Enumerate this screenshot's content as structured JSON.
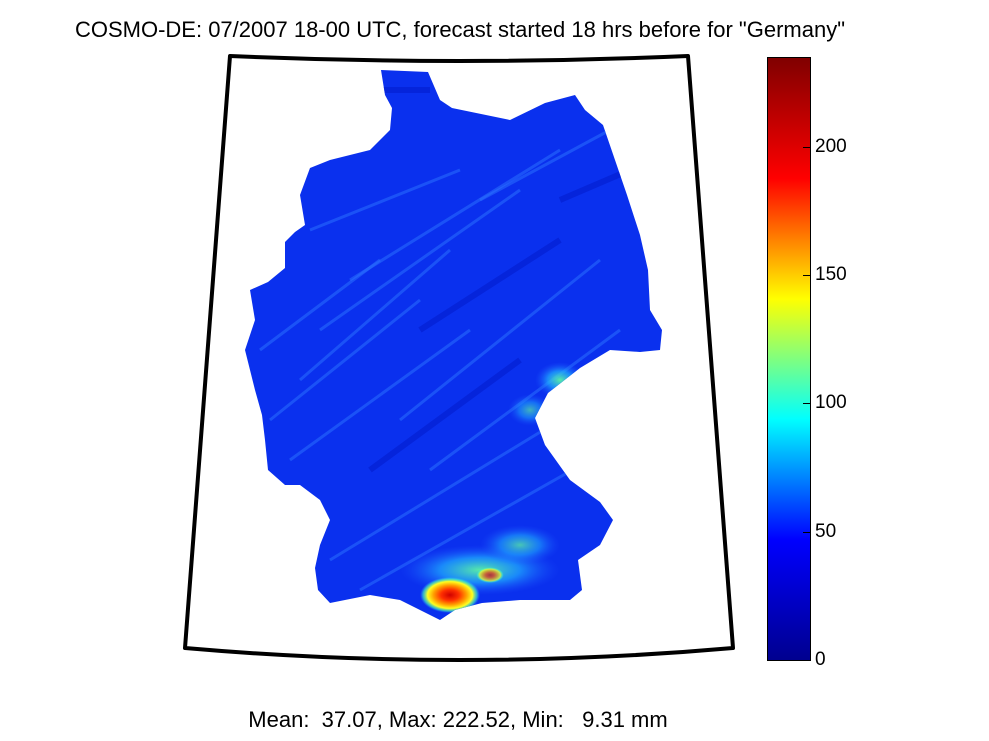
{
  "title": "COSMO-DE: 07/2007 18-00 UTC, forecast started 18 hrs before for \"Germany\"",
  "stats": "Mean:  37.07, Max: 222.52, Min:   9.31 mm",
  "colorbar": {
    "min": 0,
    "max": 235,
    "colormap": "jet",
    "ticks": [
      {
        "value": 0,
        "label": "0"
      },
      {
        "value": 50,
        "label": "50"
      },
      {
        "value": 100,
        "label": "100"
      },
      {
        "value": 150,
        "label": "150"
      },
      {
        "value": 200,
        "label": "200"
      }
    ],
    "colors": [
      "#00008f",
      "#0000ff",
      "#00ffff",
      "#ffff00",
      "#ff0000",
      "#800000"
    ]
  },
  "map": {
    "region": "Germany",
    "fill_color": "#0a2ef0",
    "hotspot_color": "#e01010"
  }
}
